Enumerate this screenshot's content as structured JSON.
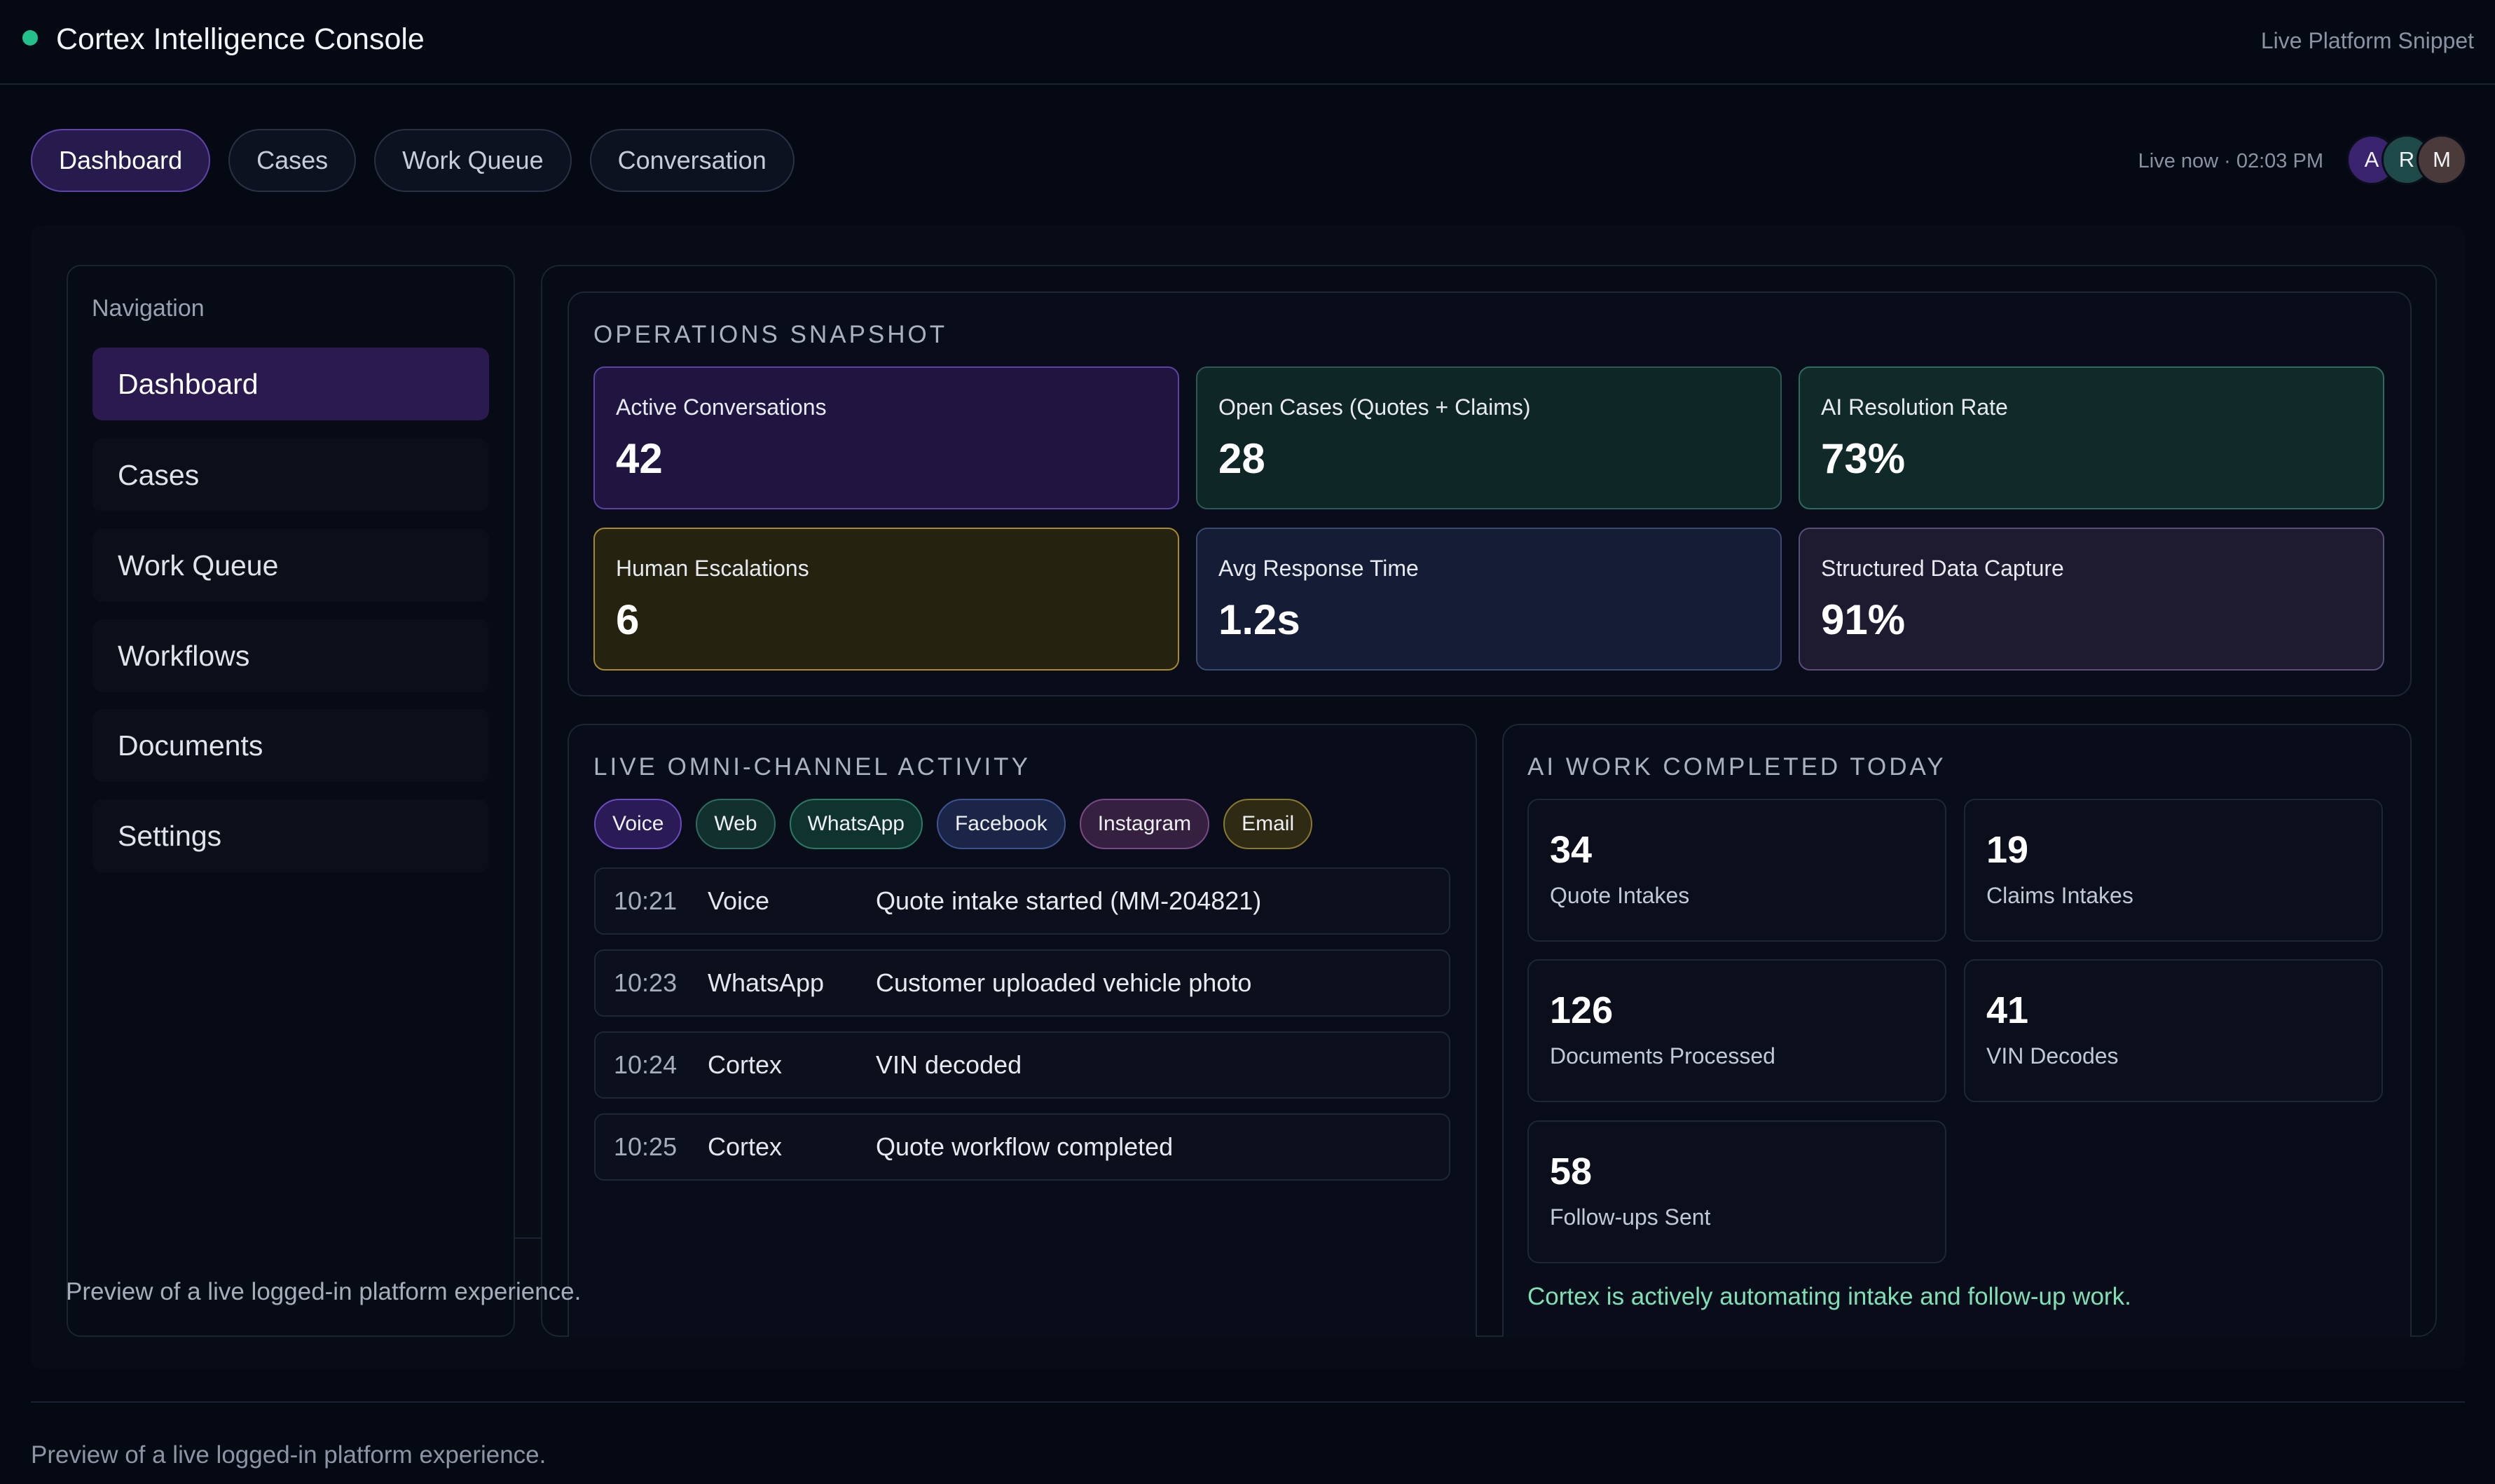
{
  "header": {
    "title": "Cortex Intelligence Console",
    "right_label": "Live Platform Snippet",
    "status_color": "#22c08a"
  },
  "tabs": [
    {
      "label": "Dashboard",
      "active": true
    },
    {
      "label": "Cases",
      "active": false
    },
    {
      "label": "Work Queue",
      "active": false
    },
    {
      "label": "Conversation",
      "active": false
    }
  ],
  "live_status": "Live now · 02:03 PM",
  "avatars": [
    {
      "initial": "A",
      "color": "#3a2470"
    },
    {
      "initial": "R",
      "color": "#1f4a4a"
    },
    {
      "initial": "M",
      "color": "#4a3a3a"
    }
  ],
  "sidebar": {
    "title": "Navigation",
    "items": [
      {
        "label": "Dashboard",
        "active": true
      },
      {
        "label": "Cases",
        "active": false
      },
      {
        "label": "Work Queue",
        "active": false
      },
      {
        "label": "Workflows",
        "active": false
      },
      {
        "label": "Documents",
        "active": false
      },
      {
        "label": "Settings",
        "active": false
      }
    ],
    "preview_text": "Preview of a live logged-in platform experience."
  },
  "snapshot": {
    "title": "OPERATIONS SNAPSHOT",
    "stats": [
      {
        "label": "Active Conversations",
        "value": "42",
        "bg": "#1f1540",
        "border": "#5b43a6"
      },
      {
        "label": "Open Cases (Quotes + Claims)",
        "value": "28",
        "bg": "#0f2627",
        "border": "#2b5a55"
      },
      {
        "label": "AI Resolution Rate",
        "value": "73%",
        "bg": "#0f2a29",
        "border": "#2e6b5e"
      },
      {
        "label": "Human Escalations",
        "value": "6",
        "bg": "#25230f",
        "border": "#a88a2a"
      },
      {
        "label": "Avg Response Time",
        "value": "1.2s",
        "bg": "#141d35",
        "border": "#3b4a72"
      },
      {
        "label": "Structured Data Capture",
        "value": "91%",
        "bg": "#1e1a30",
        "border": "#5a4e78"
      }
    ]
  },
  "activity": {
    "title": "LIVE OMNI-CHANNEL ACTIVITY",
    "channels": [
      {
        "label": "Voice",
        "bg": "#2a1a55",
        "border": "#6a4cc0"
      },
      {
        "label": "Web",
        "bg": "#12302e",
        "border": "#2f6a60"
      },
      {
        "label": "WhatsApp",
        "bg": "#0f3430",
        "border": "#2b7a66"
      },
      {
        "label": "Facebook",
        "bg": "#1a2548",
        "border": "#3f5290"
      },
      {
        "label": "Instagram",
        "bg": "#35203f",
        "border": "#7a4a88"
      },
      {
        "label": "Email",
        "bg": "#2e2a14",
        "border": "#8a7a30"
      }
    ],
    "rows": [
      {
        "time": "10:21",
        "channel": "Voice",
        "message": "Quote intake started (MM-204821)"
      },
      {
        "time": "10:23",
        "channel": "WhatsApp",
        "message": "Customer uploaded vehicle photo"
      },
      {
        "time": "10:24",
        "channel": "Cortex",
        "message": "VIN decoded"
      },
      {
        "time": "10:25",
        "channel": "Cortex",
        "message": "Quote workflow completed"
      }
    ]
  },
  "ai_work": {
    "title": "AI WORK COMPLETED TODAY",
    "items": [
      {
        "value": "34",
        "label": "Quote Intakes"
      },
      {
        "value": "19",
        "label": "Claims Intakes"
      },
      {
        "value": "126",
        "label": "Documents Processed"
      },
      {
        "value": "41",
        "label": "VIN Decodes"
      },
      {
        "value": "58",
        "label": "Follow-ups Sent"
      }
    ],
    "note": "Cortex is actively automating intake and follow-up work."
  },
  "footer": {
    "text": "Preview of a live logged-in platform experience."
  }
}
